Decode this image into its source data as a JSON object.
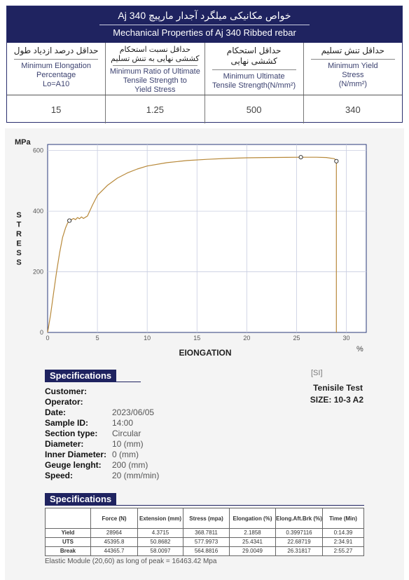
{
  "header": {
    "title_fa": "خواص مکانیکی میلگرد آجدار مارپیچ Aj 340",
    "title_en": "Mechanical Properties of Aj 340 Ribbed rebar"
  },
  "columns": [
    {
      "fa": "حداقل درصد ازدیاد طول",
      "en": [
        "Minimum Elongation",
        "Percentage",
        "Lo=A10"
      ],
      "value": "15"
    },
    {
      "fa": "حداقل نسبت استحکام",
      "fa2": "کششی نهایی به تنش تسلیم",
      "en": [
        "Minimum Ratio of Ultimate",
        "Tensile Strength to",
        "Yield Stress"
      ],
      "value": "1.25"
    },
    {
      "fa": "حداقل استحکام",
      "fa2": "کششی نهایی",
      "en": [
        "Minimum Ultimate",
        "Tensile Strength(N/mm²)"
      ],
      "value": "500"
    },
    {
      "fa": "حداقل تنش تسلیم",
      "en": [
        "Minimum Yield",
        "Stress",
        "(N/mm²)"
      ],
      "value": "340"
    }
  ],
  "chart_data": {
    "type": "line",
    "ylabel_unit": "MPa",
    "ylabel": "STRESS",
    "xlabel": "EIONGATION",
    "xlabel_unit": "%",
    "xlim": [
      0,
      32
    ],
    "ylim": [
      0,
      620
    ],
    "x_ticks": [
      "0",
      "5",
      "10",
      "15",
      "20",
      "25",
      "30"
    ],
    "y_ticks": [
      "0",
      "200",
      "400",
      "600"
    ],
    "curve_color": "#b8893a",
    "series": [
      {
        "x": [
          0,
          0.3,
          0.6,
          0.9,
          1.2,
          1.5,
          1.8,
          2.0,
          2.19,
          2.4,
          2.6,
          2.8,
          3.0,
          3.2,
          3.4,
          3.6,
          3.8,
          4.0,
          4.5,
          5,
          6,
          7,
          8,
          9,
          10,
          12,
          14,
          16,
          18,
          20,
          22,
          24,
          25.43,
          27,
          28.0,
          28.8,
          29.0,
          29.0
        ],
        "y": [
          0,
          60,
          130,
          200,
          262,
          313,
          345,
          360,
          368.8,
          372,
          376,
          372,
          379,
          375,
          381,
          376,
          380,
          384,
          420,
          452,
          485,
          509,
          526,
          539,
          549,
          560,
          567,
          571,
          574,
          576,
          577,
          577.5,
          578,
          577.8,
          577,
          573,
          564.9,
          0
        ]
      }
    ],
    "markers": [
      {
        "label": "Yield",
        "x": 2.19,
        "y": 368.8
      },
      {
        "label": "UTS",
        "x": 25.43,
        "y": 578.0
      },
      {
        "label": "Break",
        "x": 29.0,
        "y": 564.9
      }
    ]
  },
  "specs1": {
    "heading": "Specifications",
    "fields": [
      {
        "k": "Customer:",
        "v": ""
      },
      {
        "k": "Operator:",
        "v": ""
      },
      {
        "k": "Date:",
        "v": "2023/06/05"
      },
      {
        "k": "Sample ID:",
        "v": "14:00"
      },
      {
        "k": "Section type:",
        "v": "Circular"
      },
      {
        "k": "Diameter:",
        "v": "10 (mm)"
      },
      {
        "k": "Inner Diameter:",
        "v": "0 (mm)"
      },
      {
        "k": "Geuge lenght:",
        "v": "200 (mm)"
      },
      {
        "k": "Speed:",
        "v": "20 (mm/min)"
      }
    ],
    "unit_system": "[SI]",
    "test_title": "Tenisile Test",
    "size": "SIZE: 10-3 A2"
  },
  "specs2": {
    "heading": "Specifications",
    "headers": [
      "",
      "Force (N)",
      "Extension (mm)",
      "Stress (mpa)",
      "Elongation (%)",
      "Elong.Aft.Brk (%)",
      "Time (Min)"
    ],
    "rows": [
      [
        "Yield",
        "28964",
        "4.3715",
        "368.7811",
        "2.1858",
        "0.3997116",
        "0:14.39"
      ],
      [
        "UTS",
        "45395.8",
        "50.8682",
        "577.9973",
        "25.4341",
        "22.68719",
        "2:34.91"
      ],
      [
        "Break",
        "44365.7",
        "58.0097",
        "564.8816",
        "29.0049",
        "26.31817",
        "2:55.27"
      ]
    ],
    "elastic_note": "Elastic Module (20,60) as long of peak = 16463.42 Mpa"
  }
}
